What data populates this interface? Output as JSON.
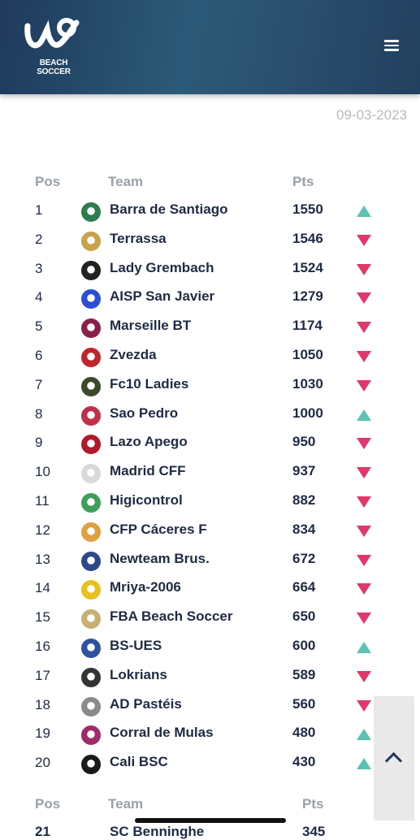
{
  "header": {
    "logo_text": "BEACH SOCCER"
  },
  "date": "09-03-2023",
  "table_header": {
    "pos": "Pos",
    "team": "Team",
    "pts": "Pts"
  },
  "rows": [
    {
      "pos": "1",
      "team": "Barra de Santiago",
      "pts": "1550",
      "trend": "up",
      "crest_color": "#2e7d4f"
    },
    {
      "pos": "2",
      "team": "Terrassa",
      "pts": "1546",
      "trend": "down",
      "crest_color": "#c8a24a"
    },
    {
      "pos": "3",
      "team": "Lady Grembach",
      "pts": "1524",
      "trend": "down",
      "crest_color": "#222222"
    },
    {
      "pos": "4",
      "team": "AISP San Javier",
      "pts": "1279",
      "trend": "down",
      "crest_color": "#2a4fd6"
    },
    {
      "pos": "5",
      "team": "Marseille BT",
      "pts": "1174",
      "trend": "down",
      "crest_color": "#8a1f4a"
    },
    {
      "pos": "6",
      "team": "Zvezda",
      "pts": "1050",
      "trend": "down",
      "crest_color": "#c0262c"
    },
    {
      "pos": "7",
      "team": "Fc10 Ladies",
      "pts": "1030",
      "trend": "down",
      "crest_color": "#3a4a2a"
    },
    {
      "pos": "8",
      "team": "Sao Pedro",
      "pts": "1000",
      "trend": "up",
      "crest_color": "#c03048"
    },
    {
      "pos": "9",
      "team": "Lazo Apego",
      "pts": "950",
      "trend": "down",
      "crest_color": "#b01a2a"
    },
    {
      "pos": "10",
      "team": "Madrid CFF",
      "pts": "937",
      "trend": "down",
      "crest_color": "#d9d9d9"
    },
    {
      "pos": "11",
      "team": "Higicontrol",
      "pts": "882",
      "trend": "down",
      "crest_color": "#3f9e5a"
    },
    {
      "pos": "12",
      "team": "CFP Cáceres F",
      "pts": "834",
      "trend": "down",
      "crest_color": "#e0a040"
    },
    {
      "pos": "13",
      "team": "Newteam Brus.",
      "pts": "672",
      "trend": "down",
      "crest_color": "#2c4a8a"
    },
    {
      "pos": "14",
      "team": "Mriya-2006",
      "pts": "664",
      "trend": "down",
      "crest_color": "#e8c020"
    },
    {
      "pos": "15",
      "team": "FBA Beach Soccer",
      "pts": "650",
      "trend": "down",
      "crest_color": "#c8b070"
    },
    {
      "pos": "16",
      "team": "BS-UES",
      "pts": "600",
      "trend": "up",
      "crest_color": "#3050a0"
    },
    {
      "pos": "17",
      "team": "Lokrians",
      "pts": "589",
      "trend": "down",
      "crest_color": "#333333"
    },
    {
      "pos": "18",
      "team": "AD Pastéis",
      "pts": "560",
      "trend": "down",
      "crest_color": "#8a8a8a"
    },
    {
      "pos": "19",
      "team": "Corral de Mulas",
      "pts": "480",
      "trend": "up",
      "crest_color": "#a02a6a"
    },
    {
      "pos": "20",
      "team": "Cali BSC",
      "pts": "430",
      "trend": "up",
      "crest_color": "#1a1a1a"
    }
  ],
  "next_row_partial": {
    "pos": "21",
    "team": "SC Benninghe",
    "pts": "345"
  },
  "icons": {
    "menu": "hamburger-icon",
    "scroll_top": "chevron-up-icon"
  },
  "colors": {
    "header": "#23405f",
    "up": "#5cc2b2",
    "down": "#e0386a"
  }
}
